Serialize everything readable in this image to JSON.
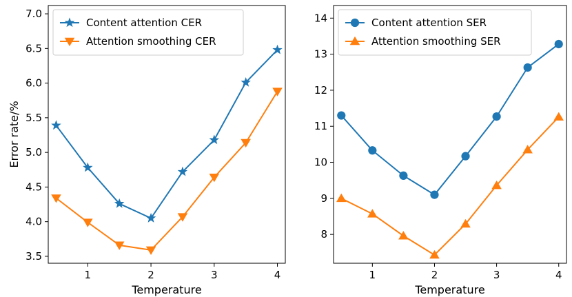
{
  "chart_data": [
    {
      "type": "line",
      "xlabel": "Temperature",
      "ylabel": "Error rate/%",
      "xlim": [
        0.375,
        4.125
      ],
      "ylim": [
        3.4,
        7.12
      ],
      "xticks": [
        1,
        2,
        3,
        4
      ],
      "xtick_labels": [
        "1",
        "2",
        "3",
        "4"
      ],
      "yticks": [
        3.5,
        4.0,
        4.5,
        5.0,
        5.5,
        6.0,
        6.5,
        7.0
      ],
      "ytick_labels": [
        "3.5",
        "4.0",
        "4.5",
        "5.0",
        "5.5",
        "6.0",
        "6.5",
        "7.0"
      ],
      "legend_position": "top-left",
      "grid": false,
      "x": [
        0.5,
        1.0,
        1.5,
        2.0,
        2.5,
        3.0,
        3.5,
        4.0
      ],
      "series": [
        {
          "name": "Content attention CER",
          "color": "#1f77b4",
          "marker": "star",
          "values": [
            5.39,
            4.78,
            4.26,
            4.05,
            4.72,
            5.18,
            6.01,
            6.48
          ]
        },
        {
          "name": "Attention smoothing CER",
          "color": "#ff7f0e",
          "marker": "triangle-down",
          "values": [
            4.34,
            3.99,
            3.66,
            3.59,
            4.07,
            4.64,
            5.14,
            5.88
          ]
        }
      ]
    },
    {
      "type": "line",
      "xlabel": "Temperature",
      "ylabel": "",
      "xlim": [
        0.375,
        4.125
      ],
      "ylim": [
        7.2,
        14.35
      ],
      "xticks": [
        1,
        2,
        3,
        4
      ],
      "xtick_labels": [
        "1",
        "2",
        "3",
        "4"
      ],
      "yticks": [
        8,
        9,
        10,
        11,
        12,
        13,
        14
      ],
      "ytick_labels": [
        "8",
        "9",
        "10",
        "11",
        "12",
        "13",
        "14"
      ],
      "legend_position": "top-left",
      "grid": false,
      "x": [
        0.5,
        1.0,
        1.5,
        2.0,
        2.5,
        3.0,
        3.5,
        4.0
      ],
      "series": [
        {
          "name": "Content attention SER",
          "color": "#1f77b4",
          "marker": "circle",
          "values": [
            11.3,
            10.33,
            9.63,
            9.1,
            10.17,
            11.27,
            12.63,
            13.28
          ]
        },
        {
          "name": "Attention smoothing SER",
          "color": "#ff7f0e",
          "marker": "triangle-up",
          "values": [
            9.0,
            8.57,
            7.96,
            7.43,
            8.29,
            9.36,
            10.35,
            11.26
          ]
        }
      ]
    }
  ]
}
